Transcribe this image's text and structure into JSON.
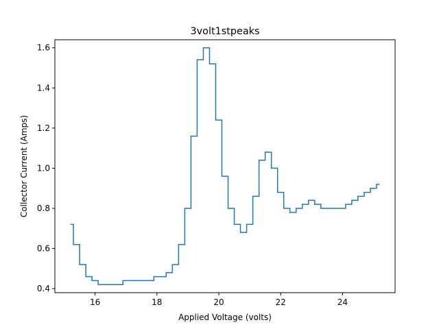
{
  "chart_data": {
    "type": "line",
    "step": "mid",
    "title": "3volt1stpeaks",
    "xlabel": "Applied Voltage (volts)",
    "ylabel": "Collector Current (Amps)",
    "xlim": [
      14.7,
      25.7
    ],
    "ylim": [
      0.38,
      1.64
    ],
    "grid": false,
    "line_color": "#1f77b4",
    "xticks": [
      16,
      18,
      20,
      22,
      24
    ],
    "xtick_labels": [
      "16",
      "18",
      "20",
      "22",
      "24"
    ],
    "yticks": [
      0.4,
      0.6,
      0.8,
      1.0,
      1.2,
      1.4,
      1.6
    ],
    "ytick_labels": [
      "0.4",
      "0.6",
      "0.8",
      "1.0",
      "1.2",
      "1.4",
      "1.6"
    ],
    "series": [
      {
        "x": [
          15.2,
          15.4,
          15.6,
          15.8,
          16.0,
          16.2,
          16.4,
          16.6,
          16.8,
          17.0,
          17.2,
          17.4,
          17.6,
          17.8,
          18.0,
          18.2,
          18.4,
          18.6,
          18.8,
          19.0,
          19.2,
          19.4,
          19.6,
          19.8,
          20.0,
          20.2,
          20.4,
          20.6,
          20.8,
          21.0,
          21.2,
          21.4,
          21.6,
          21.8,
          22.0,
          22.2,
          22.4,
          22.6,
          22.8,
          23.0,
          23.2,
          23.4,
          23.6,
          23.8,
          24.0,
          24.2,
          24.4,
          24.6,
          24.8,
          25.0,
          25.2
        ],
        "y": [
          0.72,
          0.62,
          0.52,
          0.46,
          0.44,
          0.42,
          0.42,
          0.42,
          0.42,
          0.44,
          0.44,
          0.44,
          0.44,
          0.44,
          0.46,
          0.46,
          0.48,
          0.52,
          0.62,
          0.8,
          1.16,
          1.54,
          1.6,
          1.52,
          1.24,
          0.96,
          0.8,
          0.72,
          0.68,
          0.72,
          0.86,
          1.04,
          1.08,
          1.0,
          0.88,
          0.8,
          0.78,
          0.8,
          0.82,
          0.84,
          0.82,
          0.8,
          0.8,
          0.8,
          0.8,
          0.82,
          0.84,
          0.86,
          0.88,
          0.9,
          0.92
        ]
      }
    ]
  }
}
